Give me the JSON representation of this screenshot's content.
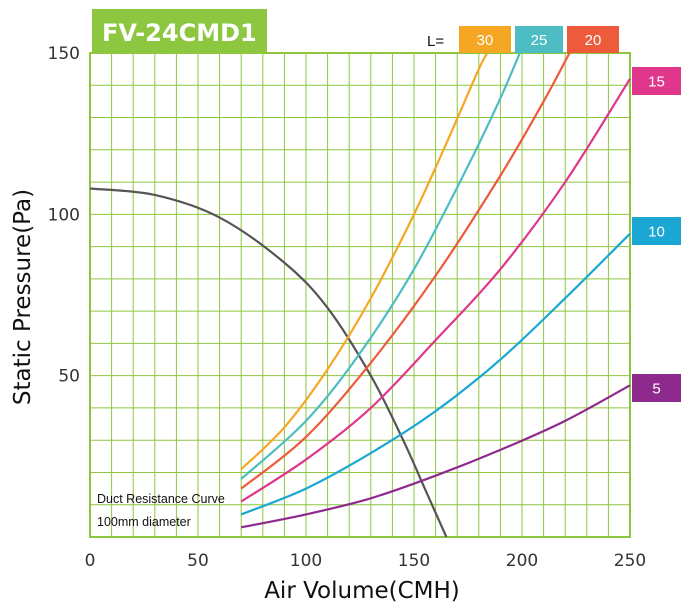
{
  "chart_data": {
    "type": "line",
    "title": "FV-24CMD1",
    "xlabel": "Air Volume(CMH)",
    "ylabel": "Static Pressure(Pa)",
    "xlim": [
      0,
      250
    ],
    "ylim": [
      0,
      150
    ],
    "xticks": [
      "0",
      "50",
      "100",
      "150",
      "200",
      "250"
    ],
    "yticks": [
      "50",
      "100",
      "150"
    ],
    "grid": true,
    "legend_prefix": "L=",
    "series": [
      {
        "name": "Duct Resistance Curve",
        "color": "#555555",
        "x": [
          0,
          30,
          60,
          90,
          110,
          130,
          145,
          155,
          165
        ],
        "y": [
          108,
          106,
          99,
          85,
          71,
          50,
          30,
          15,
          0
        ]
      },
      {
        "name": "30",
        "color": "#f5a623",
        "x": [
          70,
          90,
          110,
          130,
          150,
          165,
          180,
          184
        ],
        "y": [
          21,
          34,
          52,
          74,
          100,
          122,
          145,
          150
        ]
      },
      {
        "name": "25",
        "color": "#4dbdc3",
        "x": [
          70,
          100,
          125,
          150,
          175,
          190,
          199
        ],
        "y": [
          18,
          36,
          57,
          83,
          115,
          136,
          150
        ]
      },
      {
        "name": "20",
        "color": "#ee5a3c",
        "x": [
          70,
          100,
          130,
          160,
          190,
          210,
          222
        ],
        "y": [
          15,
          31,
          54,
          81,
          112,
          135,
          150
        ]
      },
      {
        "name": "15",
        "color": "#e0368c",
        "x": [
          70,
          100,
          130,
          160,
          190,
          220,
          250
        ],
        "y": [
          11,
          24,
          40,
          61,
          83,
          110,
          142
        ]
      },
      {
        "name": "10",
        "color": "#1aa7d4",
        "x": [
          70,
          100,
          130,
          160,
          190,
          220,
          250
        ],
        "y": [
          7,
          15,
          26,
          39,
          55,
          74,
          94
        ]
      },
      {
        "name": "5",
        "color": "#8e2a8e",
        "x": [
          70,
          100,
          130,
          160,
          190,
          220,
          250
        ],
        "y": [
          3,
          7,
          12,
          19,
          27,
          36,
          47
        ]
      }
    ],
    "annotation": [
      "Duct Resistance Curve",
      "100mm diameter"
    ]
  },
  "colors": {
    "grid": "#8dc63f",
    "model_bg": "#8dc63f"
  }
}
